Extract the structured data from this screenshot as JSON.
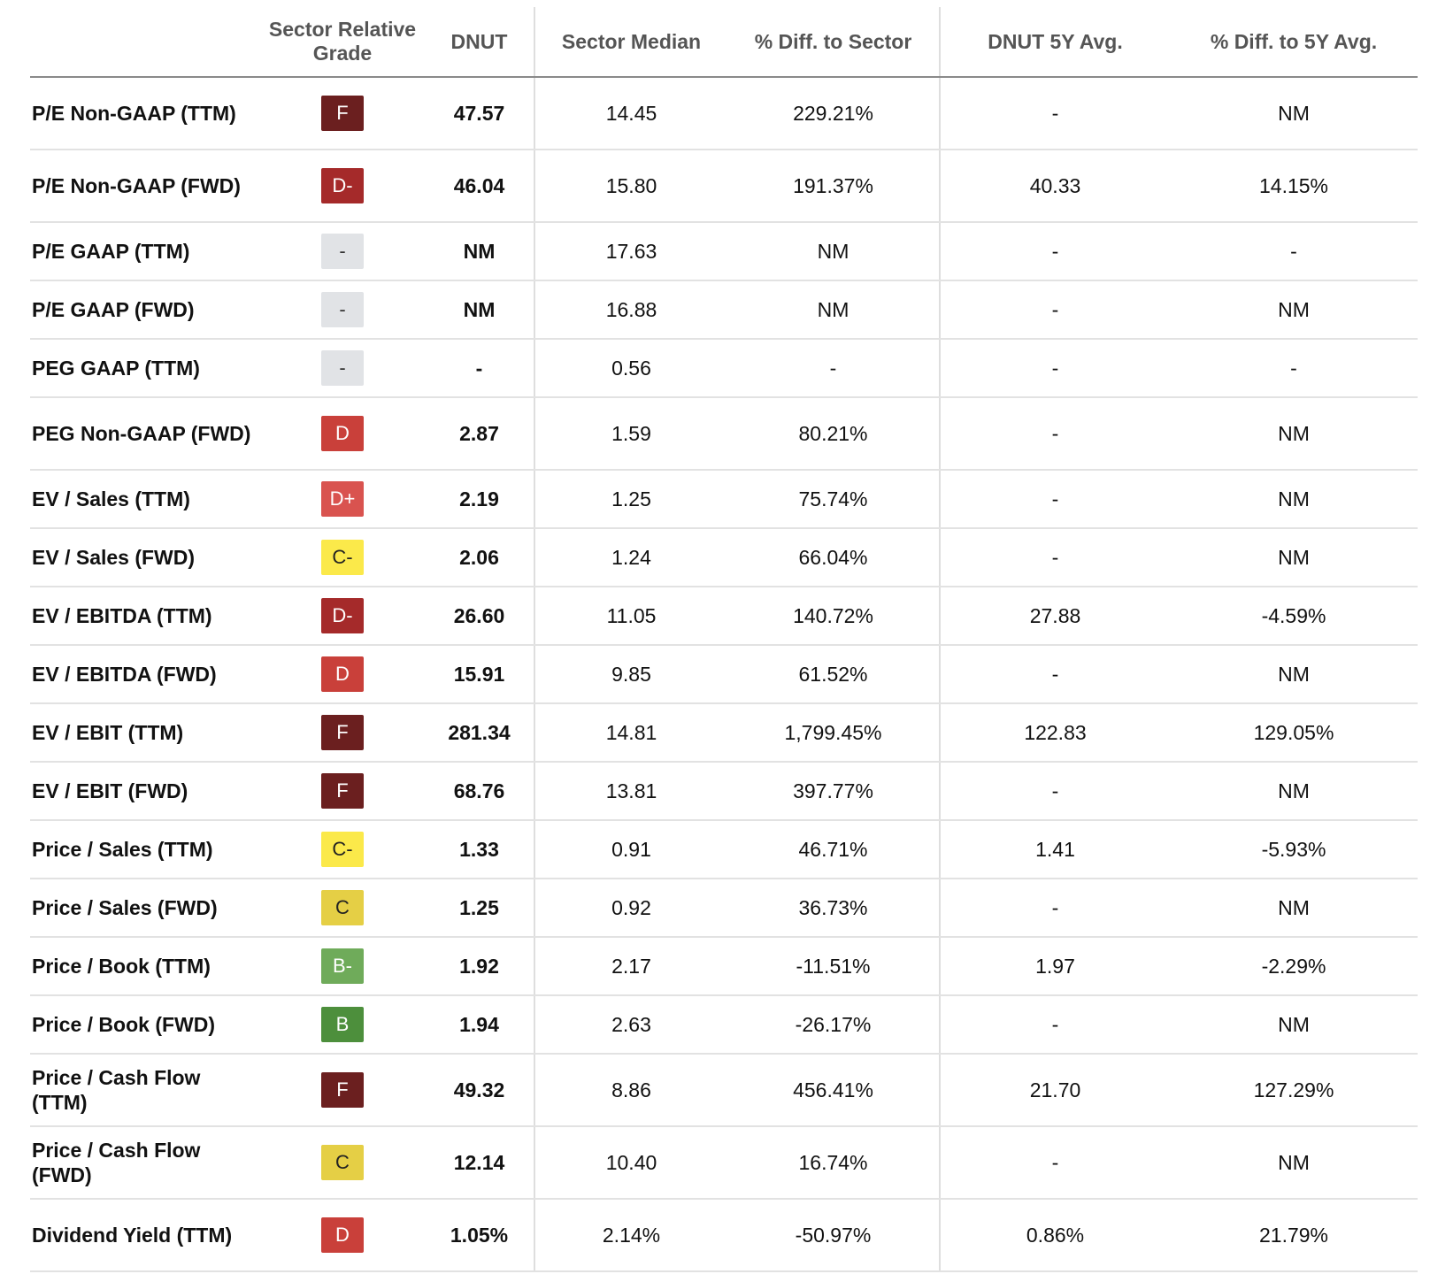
{
  "header": {
    "metric": "",
    "grade": "Sector Relative Grade",
    "dnut": "DNUT",
    "sector_median": "Sector Median",
    "diff_sector": "% Diff. to Sector",
    "avg5y": "DNUT 5Y Avg.",
    "diff_5y": "% Diff. to 5Y Avg."
  },
  "grade_colors": {
    "F": {
      "bg": "#6b1f1f",
      "fg": "#ffffff"
    },
    "D-": {
      "bg": "#a52a2a",
      "fg": "#ffffff"
    },
    "D": {
      "bg": "#c9403a",
      "fg": "#ffffff"
    },
    "D+": {
      "bg": "#d9534f",
      "fg": "#ffffff"
    },
    "C-": {
      "bg": "#fbe94a",
      "fg": "#222222"
    },
    "C": {
      "bg": "#e5cf45",
      "fg": "#222222"
    },
    "B-": {
      "bg": "#6fab5a",
      "fg": "#ffffff"
    },
    "B": {
      "bg": "#4d8f3c",
      "fg": "#ffffff"
    },
    "-": {
      "bg": "#e1e3e6",
      "fg": "#333333"
    }
  },
  "rows": [
    {
      "metric": "P/E Non-GAAP (TTM)",
      "grade": "F",
      "dnut": "47.57",
      "sector_median": "14.45",
      "diff_sector": "229.21%",
      "avg5y": "-",
      "diff_5y": "NM",
      "tall": true
    },
    {
      "metric": "P/E Non-GAAP (FWD)",
      "grade": "D-",
      "dnut": "46.04",
      "sector_median": "15.80",
      "diff_sector": "191.37%",
      "avg5y": "40.33",
      "diff_5y": "14.15%",
      "tall": true
    },
    {
      "metric": "P/E GAAP (TTM)",
      "grade": "-",
      "dnut": "NM",
      "sector_median": "17.63",
      "diff_sector": "NM",
      "avg5y": "-",
      "diff_5y": "-",
      "tall": false
    },
    {
      "metric": "P/E GAAP (FWD)",
      "grade": "-",
      "dnut": "NM",
      "sector_median": "16.88",
      "diff_sector": "NM",
      "avg5y": "-",
      "diff_5y": "NM",
      "tall": false
    },
    {
      "metric": "PEG GAAP (TTM)",
      "grade": "-",
      "dnut": "-",
      "sector_median": "0.56",
      "diff_sector": "-",
      "avg5y": "-",
      "diff_5y": "-",
      "tall": false
    },
    {
      "metric": "PEG Non-GAAP (FWD)",
      "grade": "D",
      "dnut": "2.87",
      "sector_median": "1.59",
      "diff_sector": "80.21%",
      "avg5y": "-",
      "diff_5y": "NM",
      "tall": true
    },
    {
      "metric": "EV / Sales (TTM)",
      "grade": "D+",
      "dnut": "2.19",
      "sector_median": "1.25",
      "diff_sector": "75.74%",
      "avg5y": "-",
      "diff_5y": "NM",
      "tall": false
    },
    {
      "metric": "EV / Sales (FWD)",
      "grade": "C-",
      "dnut": "2.06",
      "sector_median": "1.24",
      "diff_sector": "66.04%",
      "avg5y": "-",
      "diff_5y": "NM",
      "tall": false
    },
    {
      "metric": "EV / EBITDA (TTM)",
      "grade": "D-",
      "dnut": "26.60",
      "sector_median": "11.05",
      "diff_sector": "140.72%",
      "avg5y": "27.88",
      "diff_5y": "-4.59%",
      "tall": false
    },
    {
      "metric": "EV / EBITDA (FWD)",
      "grade": "D",
      "dnut": "15.91",
      "sector_median": "9.85",
      "diff_sector": "61.52%",
      "avg5y": "-",
      "diff_5y": "NM",
      "tall": false
    },
    {
      "metric": "EV / EBIT (TTM)",
      "grade": "F",
      "dnut": "281.34",
      "sector_median": "14.81",
      "diff_sector": "1,799.45%",
      "avg5y": "122.83",
      "diff_5y": "129.05%",
      "tall": false
    },
    {
      "metric": "EV / EBIT (FWD)",
      "grade": "F",
      "dnut": "68.76",
      "sector_median": "13.81",
      "diff_sector": "397.77%",
      "avg5y": "-",
      "diff_5y": "NM",
      "tall": false
    },
    {
      "metric": "Price / Sales (TTM)",
      "grade": "C-",
      "dnut": "1.33",
      "sector_median": "0.91",
      "diff_sector": "46.71%",
      "avg5y": "1.41",
      "diff_5y": "-5.93%",
      "tall": false
    },
    {
      "metric": "Price / Sales (FWD)",
      "grade": "C",
      "dnut": "1.25",
      "sector_median": "0.92",
      "diff_sector": "36.73%",
      "avg5y": "-",
      "diff_5y": "NM",
      "tall": false
    },
    {
      "metric": "Price / Book (TTM)",
      "grade": "B-",
      "dnut": "1.92",
      "sector_median": "2.17",
      "diff_sector": "-11.51%",
      "avg5y": "1.97",
      "diff_5y": "-2.29%",
      "tall": false
    },
    {
      "metric": "Price / Book (FWD)",
      "grade": "B",
      "dnut": "1.94",
      "sector_median": "2.63",
      "diff_sector": "-26.17%",
      "avg5y": "-",
      "diff_5y": "NM",
      "tall": false
    },
    {
      "metric": "Price / Cash Flow (TTM)",
      "grade": "F",
      "dnut": "49.32",
      "sector_median": "8.86",
      "diff_sector": "456.41%",
      "avg5y": "21.70",
      "diff_5y": "127.29%",
      "tall": true
    },
    {
      "metric": "Price / Cash Flow (FWD)",
      "grade": "C",
      "dnut": "12.14",
      "sector_median": "10.40",
      "diff_sector": "16.74%",
      "avg5y": "-",
      "diff_5y": "NM",
      "tall": true
    },
    {
      "metric": "Dividend Yield (TTM)",
      "grade": "D",
      "dnut": "1.05%",
      "sector_median": "2.14%",
      "diff_sector": "-50.97%",
      "avg5y": "0.86%",
      "diff_5y": "21.79%",
      "tall": true
    }
  ]
}
